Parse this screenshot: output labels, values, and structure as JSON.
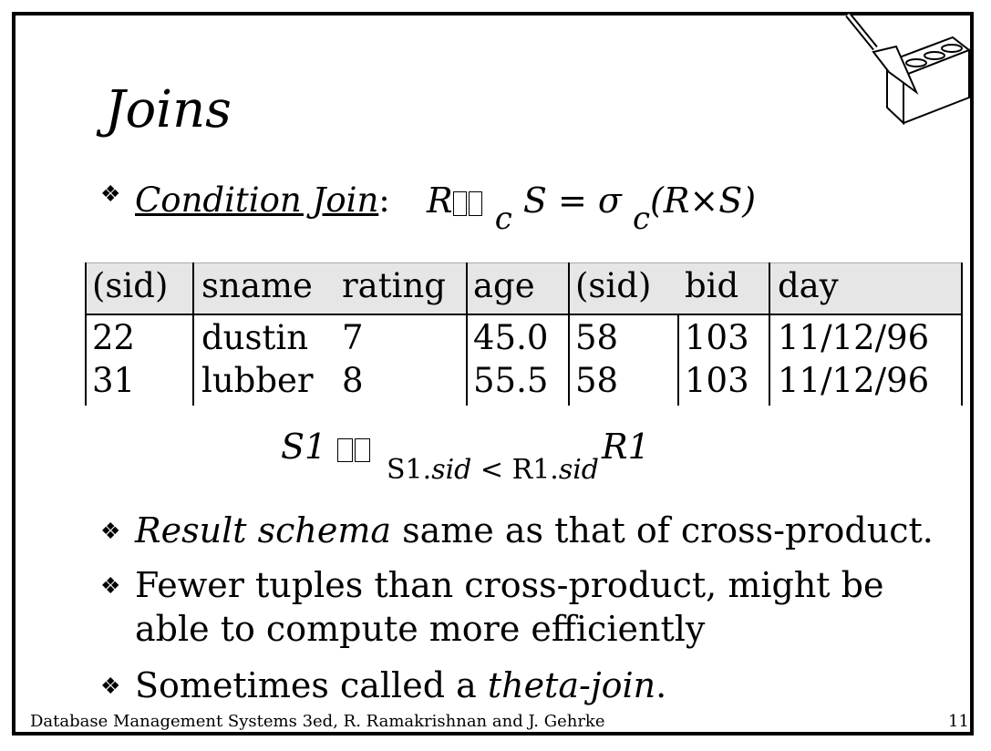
{
  "slide": {
    "title": "Joins",
    "bullet_glyph": "❖",
    "condition_join": {
      "label": "Condition Join",
      "colon": ":",
      "formula_R": "R",
      "formula_sub_c": "c",
      "formula_S_eq": "S = σ",
      "formula_sub_c2": "c",
      "formula_tail": "(R×S)"
    },
    "table": {
      "headers": [
        "(sid)",
        "sname",
        "rating",
        "age",
        "(sid)",
        "bid",
        "day"
      ],
      "rows": [
        [
          "22",
          "dustin",
          "7",
          "45.0",
          "58",
          "103",
          "11/12/96"
        ],
        [
          "31",
          "lubber",
          "8",
          "55.5",
          "58",
          "103",
          "11/12/96"
        ]
      ]
    },
    "example": {
      "left": "S1",
      "subscript_a": "S1.",
      "subscript_sid": "sid",
      "subscript_lt": " < R1.",
      "subscript_sid2": "sid",
      "right": "R1"
    },
    "bullets": [
      {
        "italic": "Result schema",
        "rest": " same as that of cross-product."
      },
      {
        "line1": "Fewer tuples than cross-product, might be",
        "line2": "able to compute more efficiently"
      },
      {
        "lead": "Sometimes called a ",
        "italic": "theta-join",
        "tail": "."
      }
    ],
    "footer": {
      "left": "Database Management Systems 3ed,  R. Ramakrishnan and J. Gehrke",
      "page": "11"
    }
  }
}
